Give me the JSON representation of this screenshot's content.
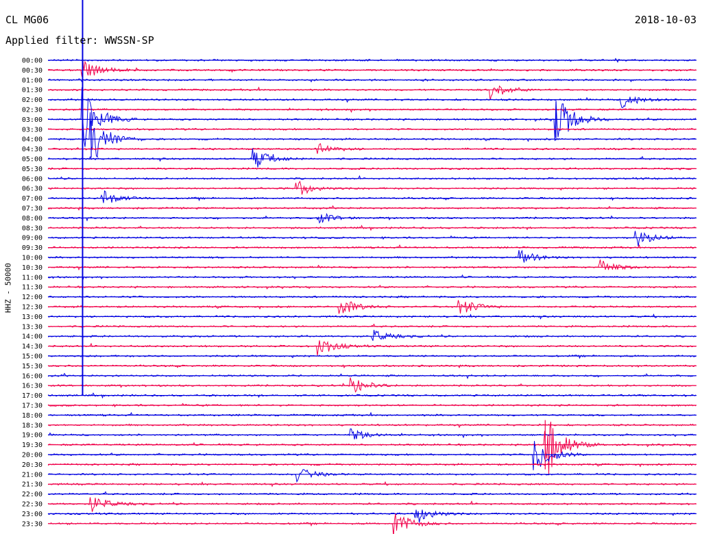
{
  "header": {
    "station": "CL MG06",
    "filter": "Applied filter: WWSSN-SP",
    "date": "2018-10-03",
    "channel_label": "HHZ - 50000"
  },
  "colors": {
    "trace_a": "#0000e0",
    "trace_b": "#f0004a"
  },
  "chart_data": {
    "type": "line",
    "title": "",
    "xlabel": "",
    "ylabel": "HHZ - 50000",
    "rows": [
      "00:00",
      "00:30",
      "01:00",
      "01:30",
      "02:00",
      "02:30",
      "03:00",
      "03:30",
      "04:00",
      "04:30",
      "05:00",
      "05:30",
      "06:00",
      "06:30",
      "07:00",
      "07:30",
      "08:00",
      "08:30",
      "09:00",
      "09:30",
      "10:00",
      "10:30",
      "11:00",
      "11:30",
      "12:00",
      "12:30",
      "13:00",
      "13:30",
      "14:00",
      "14:30",
      "15:00",
      "15:30",
      "16:00",
      "16:30",
      "17:00",
      "17:30",
      "18:00",
      "18:30",
      "19:00",
      "19:30",
      "20:00",
      "20:30",
      "21:00",
      "21:30",
      "22:00",
      "22:30",
      "23:00",
      "23:30"
    ],
    "row_minutes": 30,
    "events": [
      {
        "row": "00:30",
        "minute": 1.6,
        "amplitude": 1.2
      },
      {
        "row": "02:00",
        "minute": 26.5,
        "amplitude": 1.0
      },
      {
        "row": "03:00",
        "minute": 1.6,
        "amplitude": 3.5
      },
      {
        "row": "03:00",
        "minute": 23.5,
        "amplitude": 3.0
      },
      {
        "row": "01:30",
        "minute": 20.5,
        "amplitude": 1.0
      },
      {
        "row": "04:00",
        "minute": 2.0,
        "amplitude": 3.0
      },
      {
        "row": "04:30",
        "minute": 12.5,
        "amplitude": 0.7
      },
      {
        "row": "05:00",
        "minute": 9.5,
        "amplitude": 1.2
      },
      {
        "row": "06:30",
        "minute": 11.5,
        "amplitude": 0.9
      },
      {
        "row": "07:00",
        "minute": 2.5,
        "amplitude": 0.9
      },
      {
        "row": "08:00",
        "minute": 12.5,
        "amplitude": 0.6
      },
      {
        "row": "09:00",
        "minute": 27.2,
        "amplitude": 1.0
      },
      {
        "row": "10:00",
        "minute": 21.8,
        "amplitude": 0.8
      },
      {
        "row": "10:30",
        "minute": 25.5,
        "amplitude": 0.9
      },
      {
        "row": "12:30",
        "minute": 13.5,
        "amplitude": 1.0
      },
      {
        "row": "12:30",
        "minute": 19.0,
        "amplitude": 1.0
      },
      {
        "row": "14:00",
        "minute": 15.0,
        "amplitude": 0.7
      },
      {
        "row": "14:30",
        "minute": 12.5,
        "amplitude": 1.1
      },
      {
        "row": "16:30",
        "minute": 14.0,
        "amplitude": 1.1
      },
      {
        "row": "19:00",
        "minute": 14.0,
        "amplitude": 0.7
      },
      {
        "row": "19:30",
        "minute": 23.0,
        "amplitude": 4.0
      },
      {
        "row": "20:00",
        "minute": 22.5,
        "amplitude": 2.0
      },
      {
        "row": "21:00",
        "minute": 11.5,
        "amplitude": 0.8
      },
      {
        "row": "22:30",
        "minute": 2.0,
        "amplitude": 1.0
      },
      {
        "row": "23:00",
        "minute": 17.0,
        "amplitude": 1.2
      },
      {
        "row": "23:30",
        "minute": 16.0,
        "amplitude": 1.5
      }
    ]
  }
}
